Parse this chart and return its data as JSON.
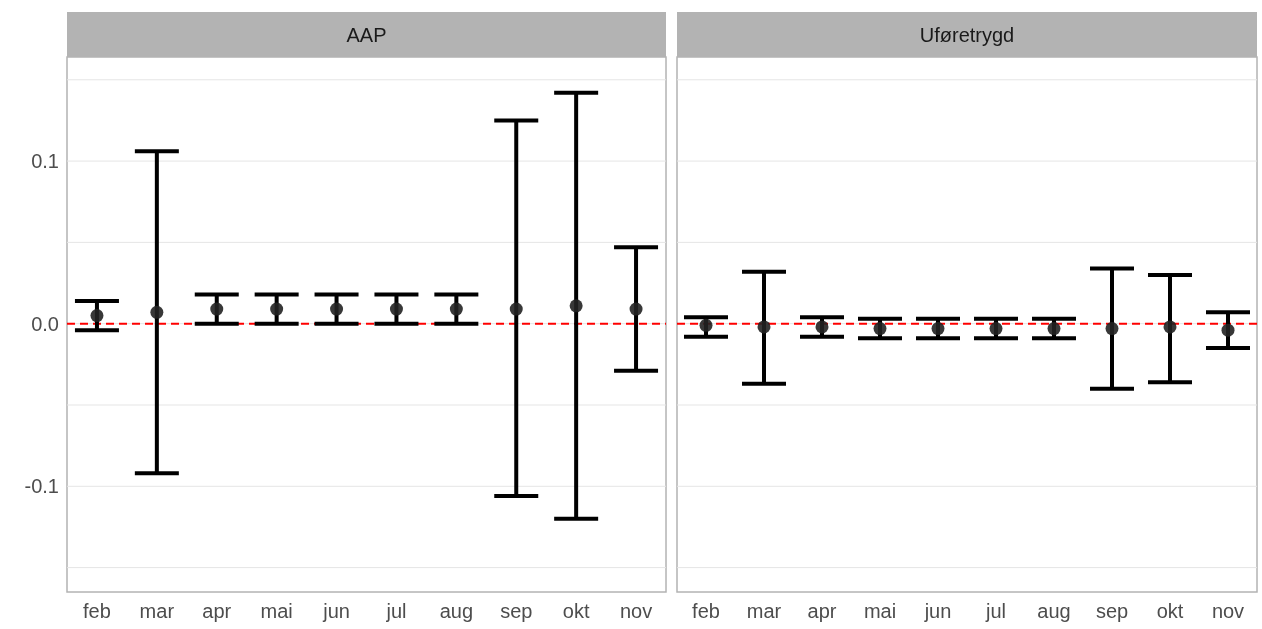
{
  "chart_data": [
    {
      "type": "scatter",
      "title": "AAP",
      "categories": [
        "feb",
        "mar",
        "apr",
        "mai",
        "jun",
        "jul",
        "aug",
        "sep",
        "okt",
        "nov"
      ],
      "series": [
        {
          "color": "#222222",
          "values": [
            0.005,
            0.007,
            0.009,
            0.009,
            0.009,
            0.009,
            0.009,
            0.009,
            0.011,
            0.009
          ],
          "errors": [
            [
              -0.004,
              0.014
            ],
            [
              -0.092,
              0.106
            ],
            [
              0.0,
              0.018
            ],
            [
              0.0,
              0.018
            ],
            [
              0.0,
              0.018
            ],
            [
              0.0,
              0.018
            ],
            [
              0.0,
              0.018
            ],
            [
              -0.106,
              0.125
            ],
            [
              -0.12,
              0.142
            ],
            [
              -0.029,
              0.047
            ]
          ]
        }
      ],
      "ylim": [
        -0.165,
        0.164
      ],
      "yticks": [
        {
          "value": -0.15,
          "label": null
        },
        {
          "value": -0.1,
          "label": "-0.1"
        },
        {
          "value": -0.05,
          "label": null
        },
        {
          "value": 0,
          "label": "0.0"
        },
        {
          "value": 0.05,
          "label": null
        },
        {
          "value": 0.1,
          "label": "0.1"
        },
        {
          "value": 0.15,
          "label": null
        }
      ],
      "grid": "y",
      "marker": "circle",
      "ref_lines": [
        {
          "axis": "y",
          "value": 0,
          "color": "#ff0000",
          "line_style": "dashed"
        }
      ]
    },
    {
      "type": "scatter",
      "title": "Uføretrygd",
      "categories": [
        "feb",
        "mar",
        "apr",
        "mai",
        "jun",
        "jul",
        "aug",
        "sep",
        "okt",
        "nov"
      ],
      "series": [
        {
          "color": "#222222",
          "values": [
            -0.001,
            -0.002,
            -0.002,
            -0.003,
            -0.003,
            -0.003,
            -0.003,
            -0.003,
            -0.002,
            -0.004
          ],
          "errors": [
            [
              -0.008,
              0.004
            ],
            [
              -0.037,
              0.032
            ],
            [
              -0.008,
              0.004
            ],
            [
              -0.009,
              0.003
            ],
            [
              -0.009,
              0.003
            ],
            [
              -0.009,
              0.003
            ],
            [
              -0.009,
              0.003
            ],
            [
              -0.04,
              0.034
            ],
            [
              -0.036,
              0.03
            ],
            [
              -0.015,
              0.007
            ]
          ]
        }
      ],
      "ylim": [
        -0.165,
        0.164
      ],
      "yticks": [
        {
          "value": -0.15,
          "label": null
        },
        {
          "value": -0.1,
          "label": null
        },
        {
          "value": -0.05,
          "label": null
        },
        {
          "value": 0,
          "label": null
        },
        {
          "value": 0.05,
          "label": null
        },
        {
          "value": 0.1,
          "label": null
        },
        {
          "value": 0.15,
          "label": null
        }
      ],
      "tick_labels": "x",
      "grid": "y",
      "marker": "circle",
      "ref_lines": [
        {
          "axis": "y",
          "value": 0,
          "color": "#ff0000",
          "line_style": "dashed"
        }
      ]
    }
  ]
}
